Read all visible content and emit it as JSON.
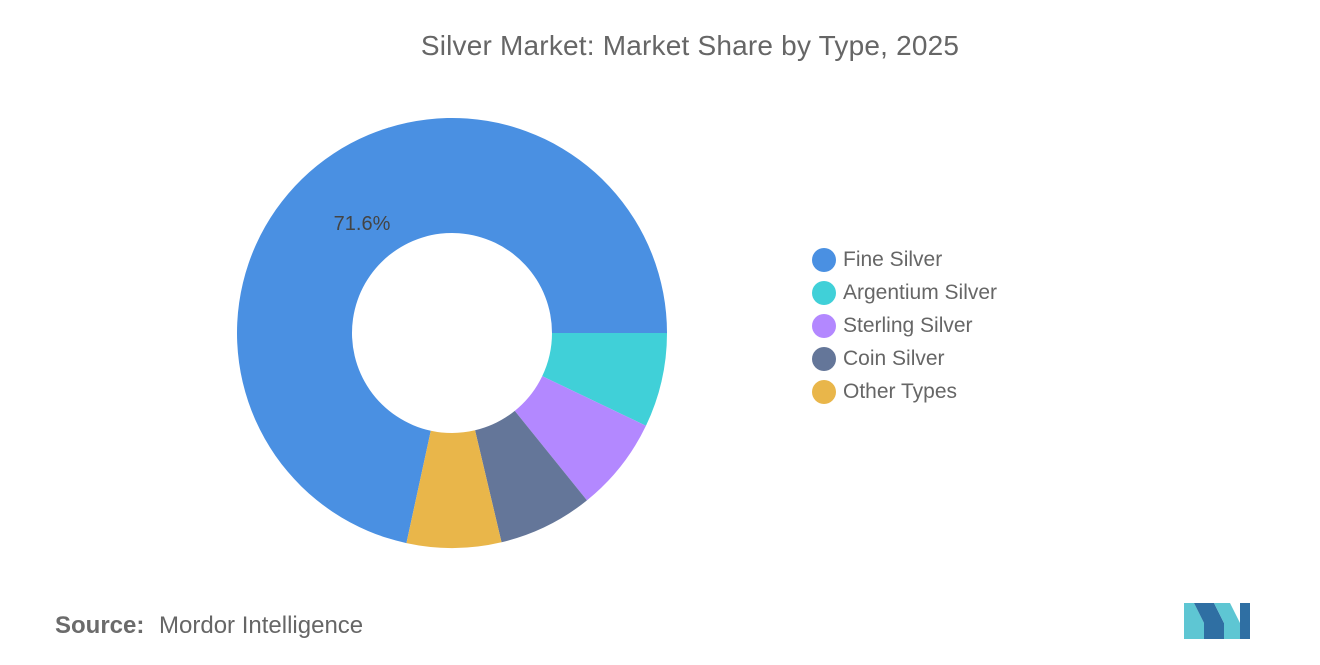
{
  "chart_data": {
    "type": "pie",
    "variant": "donut",
    "title": "Silver Market: Market Share by Type, 2025",
    "categories": [
      "Fine Silver",
      "Argentium Silver",
      "Sterling Silver",
      "Coin Silver",
      "Other Types"
    ],
    "values": [
      71.6,
      7.1,
      7.1,
      7.1,
      7.1
    ],
    "value_unit": "%",
    "colors": [
      "#4a90e2",
      "#40d0d8",
      "#b388ff",
      "#647699",
      "#e9b64a"
    ],
    "data_labels": [
      {
        "category": "Fine Silver",
        "text": "71.6%"
      }
    ],
    "legend": {
      "placement": "right",
      "items": [
        "Fine Silver",
        "Argentium Silver",
        "Sterling Silver",
        "Coin Silver",
        "Other Types"
      ]
    }
  },
  "source": {
    "label": "Source:",
    "text": "Mordor Intelligence"
  },
  "logo": {
    "icon": "mordor-intelligence-logo",
    "colors": [
      "#5ec6d3",
      "#2f6fa3"
    ]
  }
}
